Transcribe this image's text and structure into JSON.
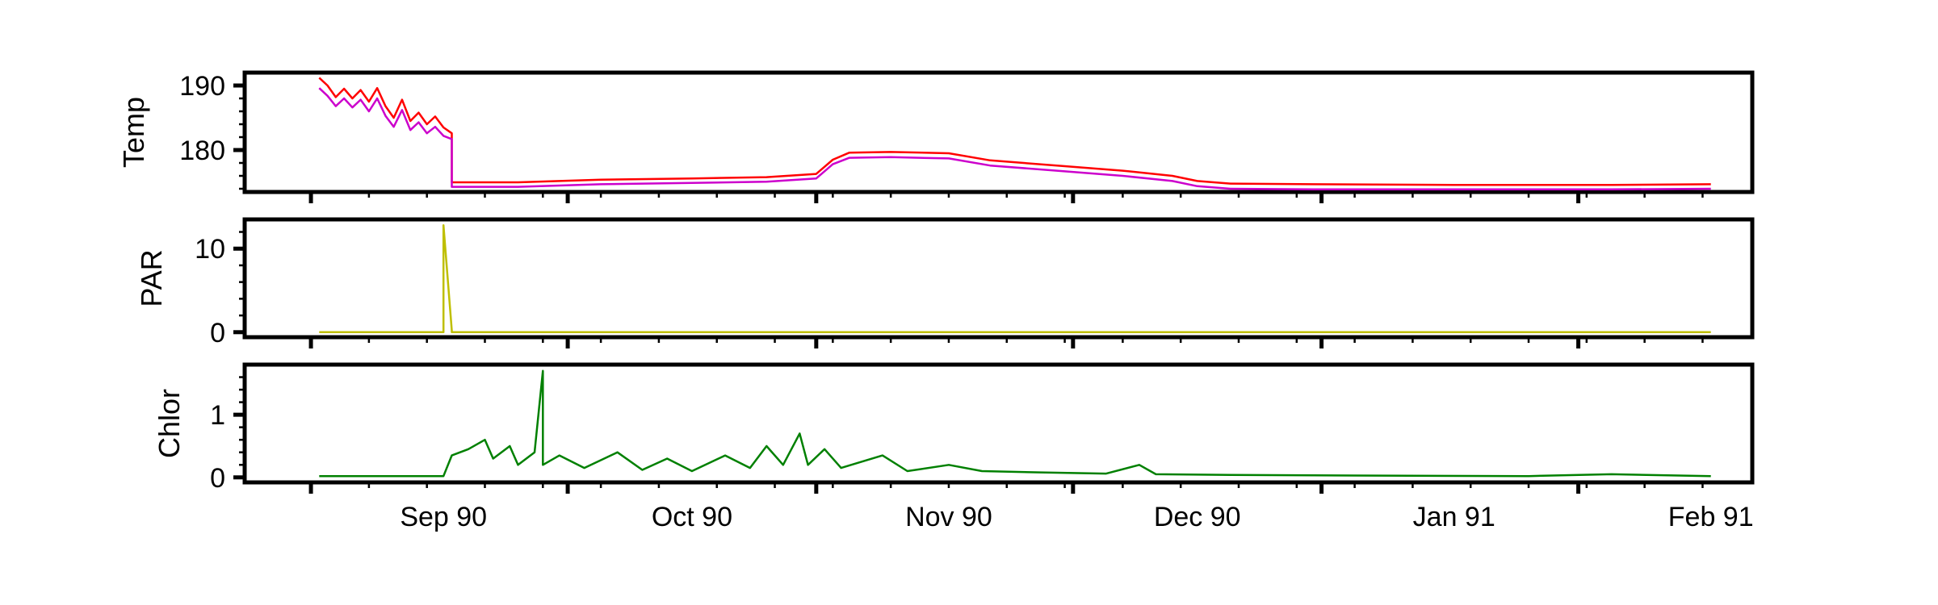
{
  "chart_data": [
    {
      "type": "line",
      "ylabel": "Temp",
      "yticks": [
        180,
        190
      ],
      "ylim": [
        173.5,
        192
      ],
      "xlim": [
        "1990-08-08",
        "1991-02-06"
      ],
      "series": [
        {
          "color": "#ff0000",
          "points": [
            [
              "1990-08-17",
              191.2
            ],
            [
              "1990-08-18",
              190.0
            ],
            [
              "1990-08-19",
              188.2
            ],
            [
              "1990-08-20",
              189.5
            ],
            [
              "1990-08-21",
              188.0
            ],
            [
              "1990-08-22",
              189.3
            ],
            [
              "1990-08-23",
              187.5
            ],
            [
              "1990-08-24",
              189.6
            ],
            [
              "1990-08-25",
              186.8
            ],
            [
              "1990-08-26",
              185.0
            ],
            [
              "1990-08-27",
              187.8
            ],
            [
              "1990-08-28",
              184.5
            ],
            [
              "1990-08-29",
              185.8
            ],
            [
              "1990-08-30",
              184.0
            ],
            [
              "1990-08-31",
              185.2
            ],
            [
              "1990-09-01",
              183.5
            ],
            [
              "1990-09-02",
              182.6
            ],
            [
              "1990-09-02",
              175.0
            ],
            [
              "1990-09-10",
              175.0
            ],
            [
              "1990-09-20",
              175.4
            ],
            [
              "1990-10-01",
              175.6
            ],
            [
              "1990-10-10",
              175.8
            ],
            [
              "1990-10-16",
              176.3
            ],
            [
              "1990-10-18",
              178.5
            ],
            [
              "1990-10-20",
              179.6
            ],
            [
              "1990-10-25",
              179.7
            ],
            [
              "1990-11-01",
              179.5
            ],
            [
              "1990-11-06",
              178.4
            ],
            [
              "1990-11-15",
              177.5
            ],
            [
              "1990-11-22",
              176.8
            ],
            [
              "1990-11-28",
              176.0
            ],
            [
              "1990-12-01",
              175.2
            ],
            [
              "1990-12-05",
              174.8
            ],
            [
              "1990-12-15",
              174.7
            ],
            [
              "1991-01-01",
              174.6
            ],
            [
              "1991-01-20",
              174.6
            ],
            [
              "1991-02-01",
              174.7
            ]
          ]
        },
        {
          "color": "#cc00cc",
          "points": [
            [
              "1990-08-17",
              189.6
            ],
            [
              "1990-08-18",
              188.4
            ],
            [
              "1990-08-19",
              186.8
            ],
            [
              "1990-08-20",
              188.0
            ],
            [
              "1990-08-21",
              186.6
            ],
            [
              "1990-08-22",
              187.8
            ],
            [
              "1990-08-23",
              186.0
            ],
            [
              "1990-08-24",
              188.0
            ],
            [
              "1990-08-25",
              185.3
            ],
            [
              "1990-08-26",
              183.6
            ],
            [
              "1990-08-27",
              186.2
            ],
            [
              "1990-08-28",
              183.1
            ],
            [
              "1990-08-29",
              184.3
            ],
            [
              "1990-08-30",
              182.6
            ],
            [
              "1990-08-31",
              183.6
            ],
            [
              "1990-09-01",
              182.2
            ],
            [
              "1990-09-02",
              181.7
            ],
            [
              "1990-09-02",
              174.3
            ],
            [
              "1990-09-10",
              174.3
            ],
            [
              "1990-09-20",
              174.7
            ],
            [
              "1990-10-01",
              174.9
            ],
            [
              "1990-10-10",
              175.1
            ],
            [
              "1990-10-16",
              175.6
            ],
            [
              "1990-10-18",
              177.8
            ],
            [
              "1990-10-20",
              178.8
            ],
            [
              "1990-10-25",
              178.9
            ],
            [
              "1990-11-01",
              178.7
            ],
            [
              "1990-11-06",
              177.6
            ],
            [
              "1990-11-15",
              176.7
            ],
            [
              "1990-11-22",
              176.0
            ],
            [
              "1990-11-28",
              175.2
            ],
            [
              "1990-12-01",
              174.4
            ],
            [
              "1990-12-05",
              174.0
            ],
            [
              "1990-12-15",
              173.9
            ],
            [
              "1991-01-01",
              173.9
            ],
            [
              "1991-01-20",
              173.9
            ],
            [
              "1991-02-01",
              174.0
            ]
          ]
        }
      ]
    },
    {
      "type": "line",
      "ylabel": "PAR",
      "yticks": [
        0,
        10
      ],
      "ylim": [
        -0.6,
        13.5
      ],
      "xlim": [
        "1990-08-08",
        "1991-02-06"
      ],
      "series": [
        {
          "color": "#bfbf00",
          "points": [
            [
              "1990-08-17",
              0
            ],
            [
              "1990-09-01",
              0
            ],
            [
              "1990-09-01",
              12.8
            ],
            [
              "1990-09-02",
              0.2
            ],
            [
              "1990-09-02",
              0
            ],
            [
              "1991-02-01",
              0
            ]
          ]
        }
      ]
    },
    {
      "type": "line",
      "ylabel": "Chlor",
      "yticks": [
        0,
        1
      ],
      "ylim": [
        -0.08,
        1.8
      ],
      "xlim": [
        "1990-08-08",
        "1991-02-06"
      ],
      "series": [
        {
          "color": "#008000",
          "points": [
            [
              "1990-08-17",
              0.02
            ],
            [
              "1990-09-01",
              0.02
            ],
            [
              "1990-09-02",
              0.35
            ],
            [
              "1990-09-04",
              0.45
            ],
            [
              "1990-09-06",
              0.6
            ],
            [
              "1990-09-07",
              0.3
            ],
            [
              "1990-09-09",
              0.5
            ],
            [
              "1990-09-10",
              0.2
            ],
            [
              "1990-09-12",
              0.4
            ],
            [
              "1990-09-13",
              1.7
            ],
            [
              "1990-09-13",
              0.2
            ],
            [
              "1990-09-15",
              0.35
            ],
            [
              "1990-09-18",
              0.15
            ],
            [
              "1990-09-22",
              0.4
            ],
            [
              "1990-09-25",
              0.12
            ],
            [
              "1990-09-28",
              0.3
            ],
            [
              "1990-10-01",
              0.1
            ],
            [
              "1990-10-05",
              0.35
            ],
            [
              "1990-10-08",
              0.15
            ],
            [
              "1990-10-10",
              0.5
            ],
            [
              "1990-10-12",
              0.2
            ],
            [
              "1990-10-14",
              0.7
            ],
            [
              "1990-10-15",
              0.2
            ],
            [
              "1990-10-17",
              0.45
            ],
            [
              "1990-10-19",
              0.15
            ],
            [
              "1990-10-24",
              0.35
            ],
            [
              "1990-10-27",
              0.1
            ],
            [
              "1990-11-01",
              0.2
            ],
            [
              "1990-11-05",
              0.1
            ],
            [
              "1990-11-12",
              0.08
            ],
            [
              "1990-11-20",
              0.06
            ],
            [
              "1990-11-24",
              0.2
            ],
            [
              "1990-11-26",
              0.05
            ],
            [
              "1990-12-05",
              0.04
            ],
            [
              "1990-12-20",
              0.03
            ],
            [
              "1991-01-10",
              0.02
            ],
            [
              "1991-01-20",
              0.05
            ],
            [
              "1991-02-01",
              0.02
            ]
          ]
        }
      ]
    }
  ],
  "x_axis": {
    "tick_labels": [
      {
        "date": "1990-09-01",
        "label": "Sep 90"
      },
      {
        "date": "1990-10-01",
        "label": "Oct 90"
      },
      {
        "date": "1990-11-01",
        "label": "Nov 90"
      },
      {
        "date": "1990-12-01",
        "label": "Dec 90"
      },
      {
        "date": "1991-01-01",
        "label": "Jan 91"
      },
      {
        "date": "1991-02-01",
        "label": "Feb 91"
      }
    ]
  }
}
